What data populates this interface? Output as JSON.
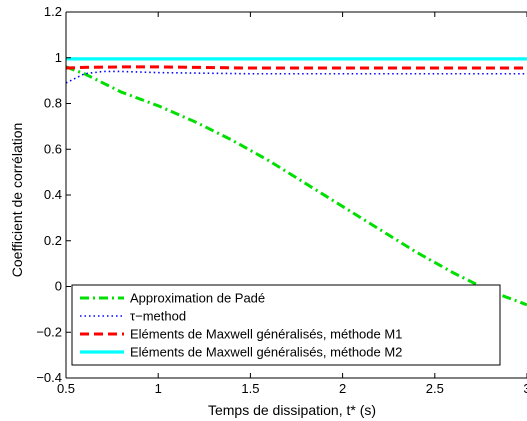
{
  "chart_data": {
    "type": "line",
    "title": "",
    "xlabel": "Temps de dissipation, t* (s)",
    "ylabel": "Coefficient de corrélation",
    "xlim": [
      0.5,
      3
    ],
    "ylim": [
      -0.4,
      1.2
    ],
    "xticks": [
      0.5,
      1,
      1.5,
      2,
      2.5,
      3
    ],
    "xtick_labels": [
      "0.5",
      "1",
      "1.5",
      "2",
      "2.5",
      "3"
    ],
    "yticks": [
      -0.4,
      -0.2,
      0,
      0.2,
      0.4,
      0.6,
      0.8,
      1,
      1.2
    ],
    "ytick_labels": [
      "−0.4",
      "−0.2",
      "0",
      "0.2",
      "0.4",
      "0.6",
      "0.8",
      "1",
      "1.2"
    ],
    "grid": false,
    "legend_position": "bottom-left",
    "series": [
      {
        "name": "Approximation de Padé",
        "color": "#00e000",
        "dash": "dash-dot",
        "x": [
          0.5,
          0.6,
          0.7,
          0.8,
          0.9,
          1.0,
          1.2,
          1.4,
          1.6,
          1.8,
          2.0,
          2.2,
          2.4,
          2.6,
          2.8,
          3.0
        ],
        "y": [
          0.96,
          0.93,
          0.89,
          0.85,
          0.82,
          0.79,
          0.72,
          0.64,
          0.55,
          0.45,
          0.35,
          0.25,
          0.15,
          0.06,
          -0.02,
          -0.08
        ]
      },
      {
        "name": "τ−method",
        "color": "#0000ff",
        "dash": "dotted",
        "x": [
          0.5,
          0.55,
          0.6,
          0.7,
          0.8,
          1.0,
          1.5,
          2.0,
          2.5,
          3.0
        ],
        "y": [
          0.89,
          0.91,
          0.93,
          0.94,
          0.94,
          0.935,
          0.93,
          0.93,
          0.93,
          0.93
        ]
      },
      {
        "name": "Eléments de Maxwell généralisés, méthode M1",
        "color": "#ff0000",
        "dash": "dashed",
        "x": [
          0.5,
          0.6,
          0.8,
          1.0,
          1.5,
          2.0,
          2.5,
          3.0
        ],
        "y": [
          0.955,
          0.958,
          0.96,
          0.96,
          0.955,
          0.955,
          0.955,
          0.955
        ]
      },
      {
        "name": "Eléments de Maxwell généralisés, méthode M2",
        "color": "#00ffff",
        "dash": "solid",
        "x": [
          0.5,
          1.0,
          1.5,
          2.0,
          2.5,
          3.0
        ],
        "y": [
          0.995,
          0.995,
          0.995,
          0.995,
          0.995,
          0.995
        ]
      }
    ]
  }
}
